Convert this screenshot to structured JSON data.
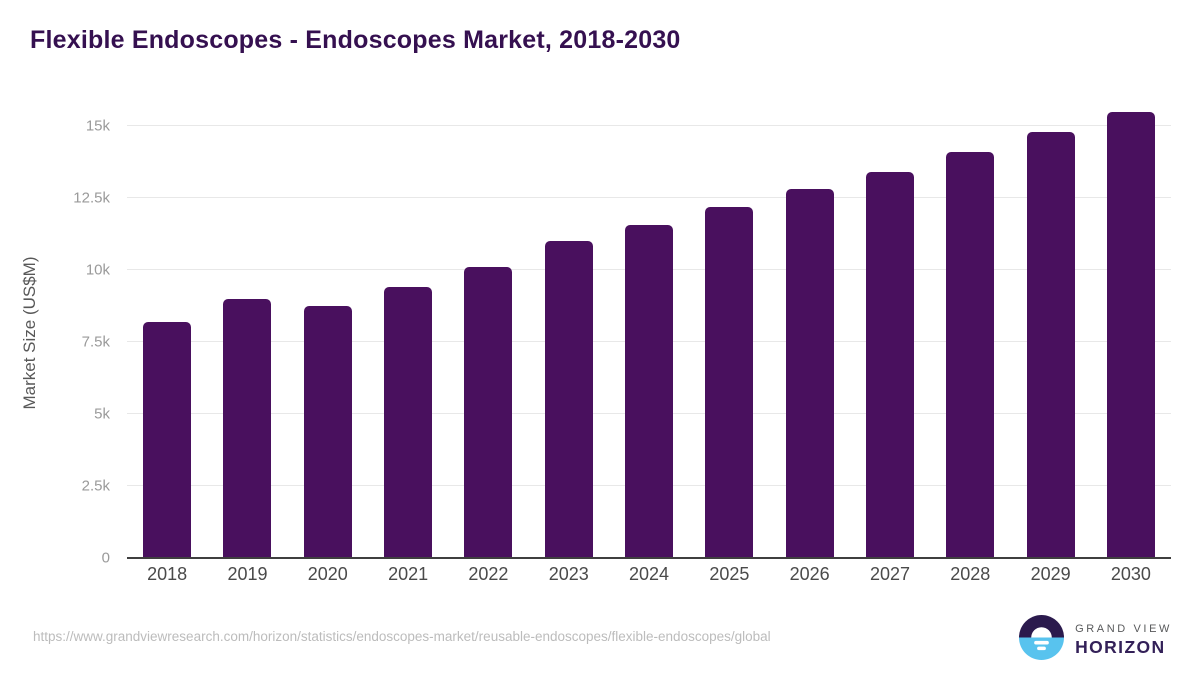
{
  "chart": {
    "title": "Flexible Endoscopes - Endoscopes Market, 2018-2030",
    "ylabel": "Market Size (US$M)"
  },
  "chart_data": {
    "type": "bar",
    "title": "Flexible Endoscopes - Endoscopes Market, 2018-2030",
    "xlabel": "",
    "ylabel": "Market Size (US$M)",
    "categories": [
      "2018",
      "2019",
      "2020",
      "2021",
      "2022",
      "2023",
      "2024",
      "2025",
      "2026",
      "2027",
      "2028",
      "2029",
      "2030"
    ],
    "values": [
      8200,
      9000,
      8750,
      9400,
      10100,
      11000,
      11550,
      12200,
      12800,
      13400,
      14100,
      14800,
      15500
    ],
    "ylim": [
      0,
      15590
    ],
    "yticks": [
      {
        "value": 0,
        "label": "0"
      },
      {
        "value": 2500,
        "label": "2.5k"
      },
      {
        "value": 5000,
        "label": "5k"
      },
      {
        "value": 7500,
        "label": "7.5k"
      },
      {
        "value": 10000,
        "label": "10k"
      },
      {
        "value": 12500,
        "label": "12.5k"
      },
      {
        "value": 15000,
        "label": "15k"
      }
    ],
    "grid": "horizontal",
    "legend": "none",
    "bar_color": "#49105e"
  },
  "footer": {
    "source_url": "https://www.grandviewresearch.com/horizon/statistics/endoscopes-market/reusable-endoscopes/flexible-endoscopes/global",
    "logo": {
      "line1": "GRAND VIEW",
      "line2": "HORIZON"
    }
  },
  "colors": {
    "bar": "#49105e",
    "title": "#351050",
    "gridline": "#e8e8e8",
    "axis_line": "#3f3f3f",
    "y_tick": "#9a9a9a",
    "x_tick": "#4a4a4a",
    "source_url": "#bcbcbc",
    "logo_dark": "#2b1a4d",
    "logo_blue": "#58c3ee"
  }
}
